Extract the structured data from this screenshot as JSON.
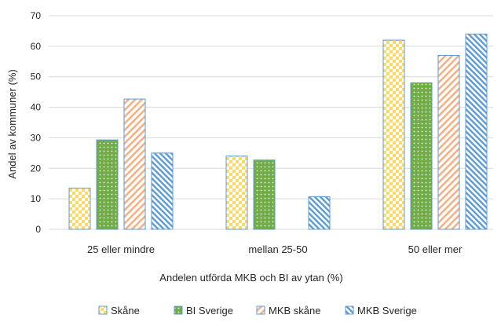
{
  "chart_data": {
    "type": "bar",
    "title": "",
    "xlabel": "Andelen utförda MKB och BI av ytan (%)",
    "ylabel": "Andel av kommuner (%)",
    "ylim": [
      0,
      70
    ],
    "yticks": [
      0,
      10,
      20,
      30,
      40,
      50,
      60,
      70
    ],
    "grid": true,
    "legend_position": "bottom",
    "categories": [
      "25 eller mindre",
      "mellan 25-50",
      "50 eller mer"
    ],
    "series": [
      {
        "name": "Skåne",
        "values": [
          13.5,
          24,
          62
        ],
        "color": "#FFD966",
        "pattern": "checker",
        "outline": "#5B9BD5"
      },
      {
        "name": "BI Sverige",
        "values": [
          29.3,
          22.7,
          48
        ],
        "color": "#70AD47",
        "pattern": "dots",
        "outline": "#5B9BD5"
      },
      {
        "name": "MKB skåne",
        "values": [
          42.7,
          null,
          57
        ],
        "color": "#F4B183",
        "pattern": "diag-right",
        "outline": "#5B9BD5"
      },
      {
        "name": "MKB Sverige",
        "values": [
          25,
          10.7,
          64
        ],
        "color": "#5B9BD5",
        "pattern": "diag-left",
        "outline": "#5B9BD5"
      }
    ]
  }
}
